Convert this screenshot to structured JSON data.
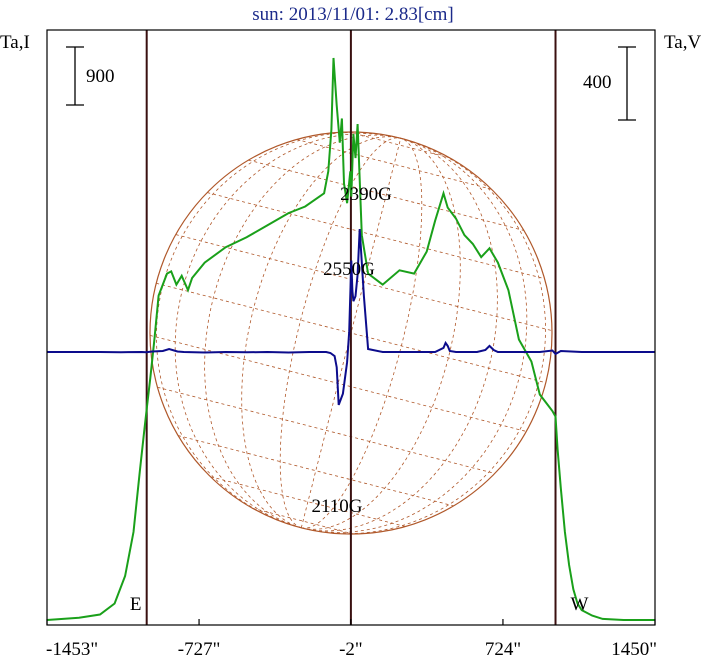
{
  "title": "sun: 2013/11/01: 2.83[cm]",
  "left_axis_label": "Ta,I",
  "right_axis_label": "Ta,V",
  "scale_left": "900",
  "scale_right": "400",
  "colors": {
    "intensity": "#1aa01a",
    "polarization": "#0c0c8c",
    "limb": "#b0582a",
    "frame": "#000000",
    "guide": "#3a1010",
    "title": "#1b2a8a"
  },
  "chart_data": {
    "type": "line",
    "title": "sun: 2013/11/01: 2.83[cm]",
    "xlabel": "",
    "ylabel_left": "Ta,I",
    "ylabel_right": "Ta,V",
    "x_ticks": [
      "-1453\"",
      "-727\"",
      "-2\"",
      "724\"",
      "1450\""
    ],
    "x_tick_values": [
      -1453,
      -727,
      -2,
      724,
      1450
    ],
    "xlim": [
      -1453,
      1450
    ],
    "limb_markers": [
      {
        "label": "E",
        "x": -977
      },
      {
        "label": "W",
        "x": 975
      }
    ],
    "center_marker_x": -2,
    "scale_bars": {
      "left": 900,
      "right": 400
    },
    "annotations": [
      {
        "text": "2390G",
        "x": 80
      },
      {
        "text": "2550G",
        "x": 0
      },
      {
        "text": "2110G",
        "x": -60
      }
    ],
    "series": [
      {
        "name": "I",
        "x": [
          -1453,
          -1300,
          -1200,
          -1130,
          -1080,
          -1040,
          -1010,
          -990,
          -975,
          -960,
          -940,
          -920,
          -880,
          -860,
          -835,
          -810,
          -780,
          -760,
          -700,
          -600,
          -500,
          -400,
          -300,
          -220,
          -130,
          -110,
          -95,
          -85,
          -70,
          -55,
          -45,
          -35,
          -20,
          -5,
          0,
          10,
          20,
          30,
          50,
          80,
          150,
          230,
          300,
          360,
          400,
          440,
          460,
          500,
          540,
          580,
          620,
          660,
          700,
          750,
          800,
          860,
          900,
          940,
          960,
          975,
          985,
          1000,
          1020,
          1040,
          1060,
          1080,
          1100,
          1150,
          1200,
          1300,
          1400,
          1450
        ],
        "y": [
          0,
          20,
          50,
          150,
          400,
          800,
          1350,
          1700,
          1950,
          2200,
          2550,
          2950,
          3150,
          3170,
          3050,
          3130,
          3000,
          3110,
          3250,
          3390,
          3480,
          3590,
          3700,
          3760,
          3880,
          4080,
          4460,
          5110,
          4680,
          4340,
          4560,
          3970,
          3790,
          4080,
          3850,
          4420,
          4200,
          4510,
          3500,
          3150,
          3050,
          3180,
          3150,
          3350,
          3630,
          3880,
          3750,
          3650,
          3500,
          3420,
          3300,
          3380,
          3250,
          3000,
          2550,
          2350,
          2050,
          1950,
          1900,
          1850,
          1550,
          1200,
          800,
          500,
          280,
          150,
          90,
          40,
          10,
          0,
          0,
          0
        ]
      },
      {
        "name": "V",
        "x": [
          -1453,
          -1200,
          -1100,
          -1000,
          -980,
          -950,
          -900,
          -870,
          -830,
          -800,
          -700,
          -600,
          -500,
          -400,
          -300,
          -200,
          -120,
          -100,
          -80,
          -70,
          -60,
          -40,
          -20,
          -10,
          0,
          5,
          10,
          20,
          30,
          40,
          60,
          80,
          150,
          300,
          400,
          440,
          450,
          460,
          470,
          500,
          600,
          640,
          660,
          680,
          700,
          800,
          900,
          960,
          975,
          1000,
          1100,
          1200,
          1300,
          1450
        ],
        "y": [
          0,
          0,
          -2,
          0,
          -2,
          5,
          10,
          30,
          5,
          0,
          -5,
          0,
          -3,
          0,
          -5,
          0,
          0,
          -10,
          -40,
          -150,
          -520,
          -410,
          -100,
          200,
          900,
          600,
          500,
          550,
          760,
          1210,
          550,
          30,
          0,
          0,
          0,
          40,
          90,
          60,
          10,
          0,
          0,
          20,
          60,
          20,
          0,
          0,
          0,
          15,
          -20,
          10,
          0,
          0,
          0,
          0
        ]
      }
    ],
    "grid": false
  }
}
